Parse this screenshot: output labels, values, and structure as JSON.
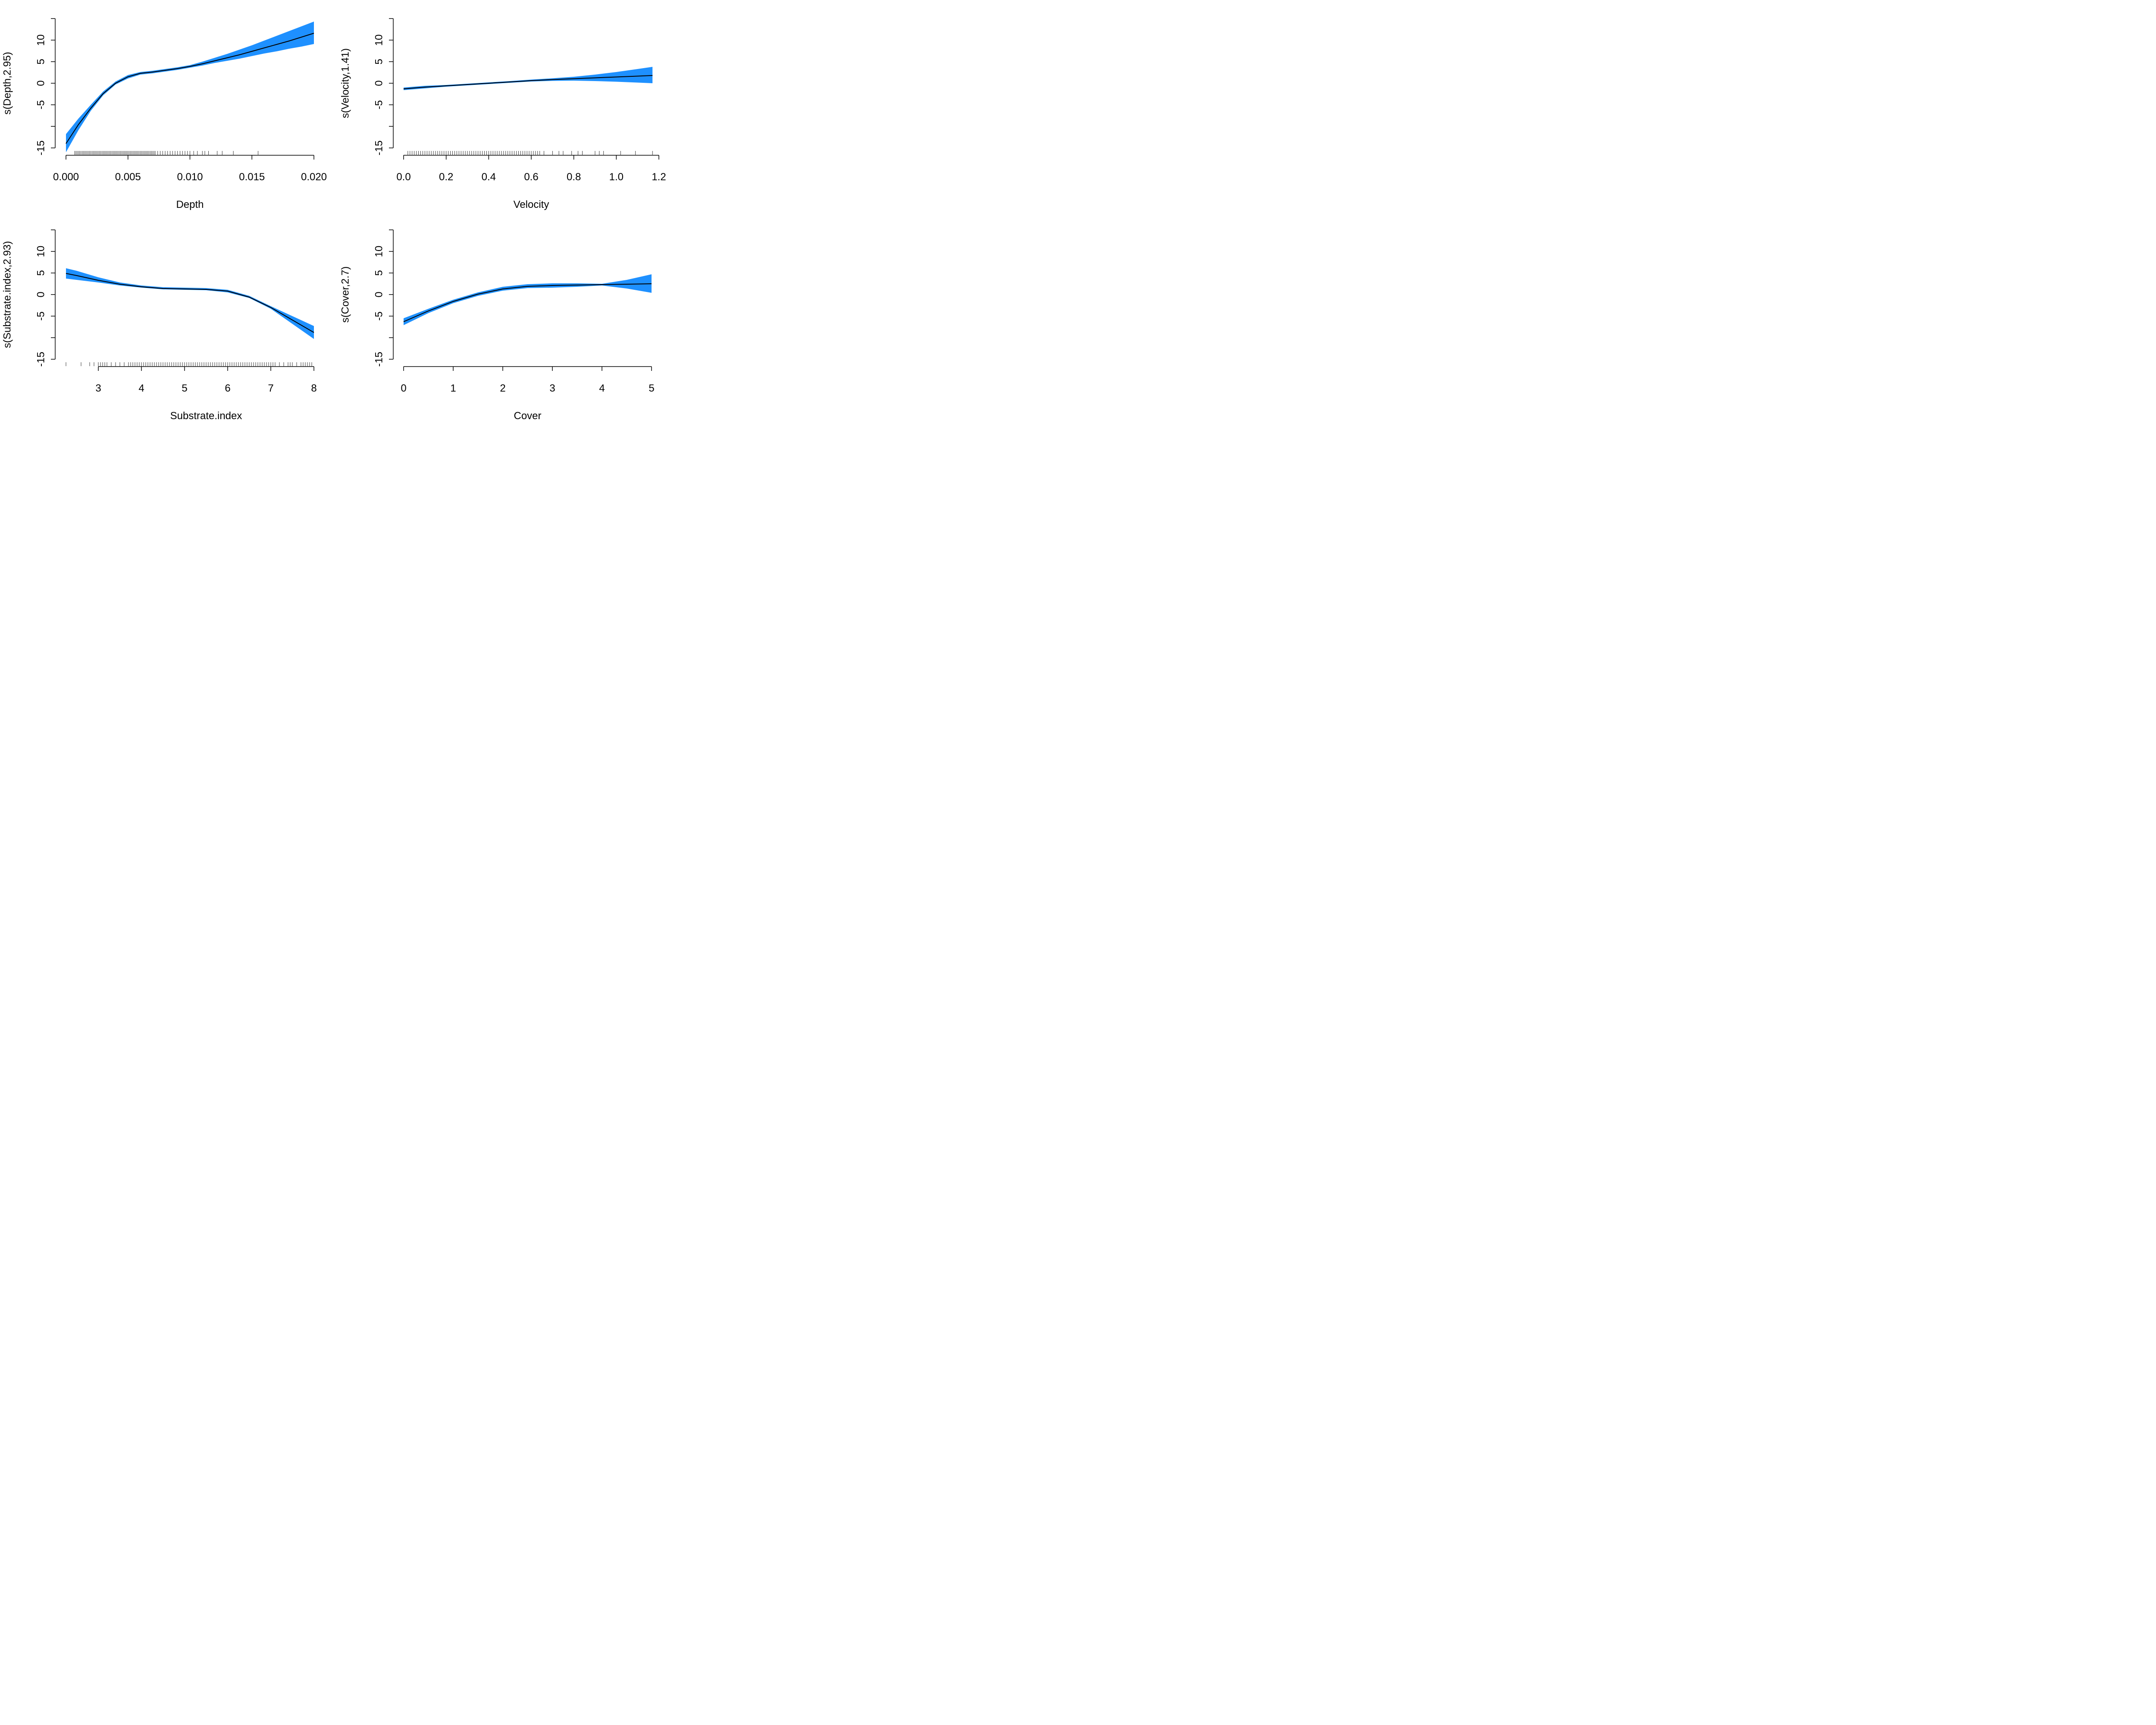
{
  "chart_data": [
    {
      "type": "line",
      "xlabel": "Depth",
      "ylabel": "s(Depth,2.95)",
      "xlim": [
        0,
        0.02
      ],
      "ylim": [
        -15,
        15
      ],
      "x_ticks": [
        0,
        0.005,
        0.01,
        0.015,
        0.02
      ],
      "x_tick_labels": [
        "0.000",
        "0.005",
        "0.010",
        "0.015",
        "0.020"
      ],
      "y_ticks": [
        -15,
        -10,
        -5,
        0,
        5,
        10,
        15
      ],
      "y_tick_labels": [
        "-15",
        "",
        "-5",
        "0",
        "5",
        "10",
        ""
      ],
      "x": [
        0,
        0.001,
        0.002,
        0.003,
        0.004,
        0.005,
        0.006,
        0.007,
        0.008,
        0.009,
        0.01,
        0.011,
        0.012,
        0.013,
        0.014,
        0.015,
        0.016,
        0.017,
        0.018,
        0.019,
        0.02
      ],
      "fit": [
        -14,
        -9.6,
        -5.8,
        -2.4,
        0,
        1.5,
        2.3,
        2.6,
        3.0,
        3.4,
        3.9,
        4.5,
        5.2,
        5.9,
        6.6,
        7.4,
        8.2,
        9.0,
        9.8,
        10.7,
        11.6
      ],
      "lower": [
        -16,
        -10.9,
        -6.4,
        -2.8,
        -0.3,
        1.1,
        2.0,
        2.3,
        2.7,
        3.1,
        3.6,
        4.1,
        4.7,
        5.2,
        5.7,
        6.3,
        6.9,
        7.4,
        8.0,
        8.5,
        9.1
      ],
      "upper": [
        -11.8,
        -8.2,
        -5.0,
        -1.9,
        0.4,
        1.9,
        2.6,
        2.9,
        3.3,
        3.7,
        4.2,
        5.0,
        5.9,
        6.8,
        7.8,
        8.8,
        9.9,
        11.0,
        12.1,
        13.2,
        14.3
      ],
      "rug": [
        0.0007,
        0.0008,
        0.0009,
        0.001,
        0.0011,
        0.0012,
        0.0013,
        0.0014,
        0.0015,
        0.0016,
        0.0017,
        0.0018,
        0.0019,
        0.002,
        0.0021,
        0.0022,
        0.0023,
        0.0024,
        0.0025,
        0.0026,
        0.0027,
        0.0028,
        0.0029,
        0.003,
        0.0031,
        0.0032,
        0.0033,
        0.0034,
        0.0035,
        0.0036,
        0.0037,
        0.0038,
        0.0039,
        0.004,
        0.0041,
        0.0042,
        0.0043,
        0.0044,
        0.0045,
        0.0046,
        0.0047,
        0.0048,
        0.0049,
        0.005,
        0.0051,
        0.0052,
        0.0053,
        0.0054,
        0.0055,
        0.0056,
        0.0057,
        0.0058,
        0.0059,
        0.006,
        0.0061,
        0.0062,
        0.0063,
        0.0064,
        0.0065,
        0.0066,
        0.0067,
        0.0068,
        0.0069,
        0.007,
        0.0071,
        0.0072,
        0.0074,
        0.0076,
        0.0078,
        0.008,
        0.0082,
        0.0084,
        0.0086,
        0.0088,
        0.009,
        0.0092,
        0.0094,
        0.0096,
        0.0098,
        0.01,
        0.0103,
        0.0106,
        0.011,
        0.0112,
        0.0115,
        0.0122,
        0.0126,
        0.0135,
        0.0155
      ]
    },
    {
      "type": "line",
      "xlabel": "Velocity",
      "ylabel": "s(Velocity,1.41)",
      "xlim": [
        0,
        1.2
      ],
      "ylim": [
        -15,
        15
      ],
      "x_ticks": [
        0,
        0.2,
        0.4,
        0.6,
        0.8,
        1.0,
        1.2
      ],
      "x_tick_labels": [
        "0.0",
        "0.2",
        "0.4",
        "0.6",
        "0.8",
        "1.0",
        "1.2"
      ],
      "y_ticks": [
        -15,
        -10,
        -5,
        0,
        5,
        10,
        15
      ],
      "y_tick_labels": [
        "-15",
        "",
        "-5",
        "0",
        "5",
        "10",
        ""
      ],
      "x": [
        0,
        0.1,
        0.2,
        0.3,
        0.4,
        0.5,
        0.6,
        0.7,
        0.8,
        0.9,
        1.0,
        1.1,
        1.17
      ],
      "fit": [
        -1.3,
        -0.9,
        -0.6,
        -0.3,
        0,
        0.3,
        0.6,
        0.85,
        1.05,
        1.25,
        1.45,
        1.65,
        1.8
      ],
      "lower": [
        -1.6,
        -1.2,
        -0.8,
        -0.5,
        -0.2,
        0.1,
        0.4,
        0.55,
        0.6,
        0.5,
        0.35,
        0.15,
        0
      ],
      "upper": [
        -1.0,
        -0.6,
        -0.4,
        -0.1,
        0.2,
        0.5,
        0.85,
        1.15,
        1.5,
        2.0,
        2.6,
        3.3,
        3.8
      ],
      "rug": [
        0.02,
        0.03,
        0.04,
        0.05,
        0.06,
        0.07,
        0.08,
        0.09,
        0.1,
        0.11,
        0.12,
        0.13,
        0.14,
        0.15,
        0.16,
        0.17,
        0.18,
        0.19,
        0.2,
        0.21,
        0.22,
        0.23,
        0.24,
        0.25,
        0.26,
        0.27,
        0.28,
        0.29,
        0.3,
        0.31,
        0.32,
        0.33,
        0.34,
        0.35,
        0.36,
        0.37,
        0.38,
        0.39,
        0.4,
        0.41,
        0.42,
        0.43,
        0.44,
        0.45,
        0.46,
        0.47,
        0.48,
        0.49,
        0.5,
        0.51,
        0.52,
        0.53,
        0.54,
        0.55,
        0.56,
        0.57,
        0.58,
        0.59,
        0.6,
        0.61,
        0.62,
        0.63,
        0.64,
        0.66,
        0.7,
        0.73,
        0.75,
        0.79,
        0.82,
        0.84,
        0.9,
        0.92,
        0.94,
        1.02,
        1.09,
        1.17
      ]
    },
    {
      "type": "line",
      "xlabel": "Substrate.index",
      "ylabel": "s(Substrate.index,2.93)",
      "xlim": [
        3,
        8
      ],
      "ylim": [
        -15,
        15
      ],
      "x_ticks": [
        3,
        4,
        5,
        6,
        7,
        8
      ],
      "x_tick_labels": [
        "3",
        "4",
        "5",
        "6",
        "7",
        "8"
      ],
      "y_ticks": [
        -15,
        -10,
        -5,
        0,
        5,
        10,
        15
      ],
      "y_tick_labels": [
        "-15",
        "",
        "-5",
        "0",
        "5",
        "10",
        ""
      ],
      "x": [
        2.25,
        2.5,
        3,
        3.5,
        4,
        4.5,
        5,
        5.5,
        6,
        6.5,
        7,
        7.5,
        8
      ],
      "fit": [
        4.9,
        4.4,
        3.3,
        2.4,
        1.8,
        1.4,
        1.3,
        1.2,
        0.8,
        -0.6,
        -3.0,
        -5.9,
        -8.8
      ],
      "lower": [
        3.7,
        3.4,
        2.8,
        2.1,
        1.6,
        1.2,
        1.1,
        1.0,
        0.5,
        -0.8,
        -3.3,
        -6.8,
        -10.3
      ],
      "upper": [
        6.1,
        5.5,
        4.0,
        2.8,
        2.1,
        1.7,
        1.6,
        1.5,
        1.1,
        -0.3,
        -2.7,
        -5.0,
        -7.3
      ],
      "rug": [
        2.25,
        2.6,
        2.8,
        2.9,
        3.0,
        3.05,
        3.1,
        3.15,
        3.2,
        3.3,
        3.4,
        3.5,
        3.6,
        3.7,
        3.75,
        3.8,
        3.85,
        3.9,
        3.95,
        4.0,
        4.05,
        4.1,
        4.15,
        4.2,
        4.25,
        4.3,
        4.35,
        4.4,
        4.45,
        4.5,
        4.55,
        4.6,
        4.65,
        4.7,
        4.75,
        4.8,
        4.85,
        4.9,
        4.95,
        5.0,
        5.05,
        5.1,
        5.15,
        5.2,
        5.25,
        5.3,
        5.35,
        5.4,
        5.45,
        5.5,
        5.55,
        5.6,
        5.65,
        5.7,
        5.75,
        5.8,
        5.85,
        5.9,
        5.95,
        6.0,
        6.05,
        6.1,
        6.15,
        6.2,
        6.25,
        6.3,
        6.35,
        6.4,
        6.45,
        6.5,
        6.55,
        6.6,
        6.65,
        6.7,
        6.75,
        6.8,
        6.85,
        6.9,
        6.95,
        7.0,
        7.05,
        7.1,
        7.2,
        7.3,
        7.4,
        7.45,
        7.5,
        7.6,
        7.7,
        7.75,
        7.8,
        7.85,
        7.9,
        7.95
      ]
    },
    {
      "type": "line",
      "xlabel": "Cover",
      "ylabel": "s(Cover,2.7)",
      "xlim": [
        0,
        5
      ],
      "ylim": [
        -15,
        15
      ],
      "x_ticks": [
        0,
        1,
        2,
        3,
        4,
        5
      ],
      "x_tick_labels": [
        "0",
        "1",
        "2",
        "3",
        "4",
        "5"
      ],
      "y_ticks": [
        -15,
        -10,
        -5,
        0,
        5,
        10,
        15
      ],
      "y_tick_labels": [
        "-15",
        "",
        "-5",
        "0",
        "5",
        "10",
        ""
      ],
      "x": [
        0,
        0.5,
        1,
        1.5,
        2,
        2.5,
        3,
        3.5,
        4,
        4.5,
        5
      ],
      "fit": [
        -6.3,
        -3.8,
        -1.6,
        0.1,
        1.3,
        1.9,
        2.1,
        2.2,
        2.3,
        2.4,
        2.5
      ],
      "lower": [
        -7.1,
        -4.3,
        -2.0,
        -0.3,
        0.9,
        1.5,
        1.6,
        1.8,
        2.1,
        1.4,
        0.4
      ],
      "upper": [
        -5.5,
        -3.3,
        -1.2,
        0.5,
        1.8,
        2.4,
        2.6,
        2.6,
        2.5,
        3.4,
        4.7
      ],
      "rug": []
    }
  ]
}
